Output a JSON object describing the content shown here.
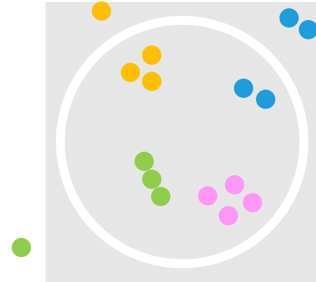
{
  "game": {
    "board_color": "#e6e6e6",
    "ring_color": "#ffffff"
  },
  "groups": [
    {
      "name": "yellow",
      "color": "#ffbf00",
      "balls": [
        {
          "id": "yellow-ball-1"
        },
        {
          "id": "yellow-ball-2"
        },
        {
          "id": "yellow-ball-3"
        },
        {
          "id": "yellow-ball-4"
        }
      ]
    },
    {
      "name": "blue",
      "color": "#1e9dda",
      "balls": [
        {
          "id": "blue-ball-1"
        },
        {
          "id": "blue-ball-2"
        },
        {
          "id": "blue-ball-3"
        },
        {
          "id": "blue-ball-4"
        }
      ]
    },
    {
      "name": "green",
      "color": "#8fcd4b",
      "balls": [
        {
          "id": "green-ball-1"
        },
        {
          "id": "green-ball-2"
        },
        {
          "id": "green-ball-3"
        },
        {
          "id": "green-ball-4"
        }
      ]
    },
    {
      "name": "pink",
      "color": "#ff96f7",
      "balls": [
        {
          "id": "pink-ball-1"
        },
        {
          "id": "pink-ball-2"
        },
        {
          "id": "pink-ball-3"
        },
        {
          "id": "pink-ball-4"
        }
      ]
    }
  ]
}
